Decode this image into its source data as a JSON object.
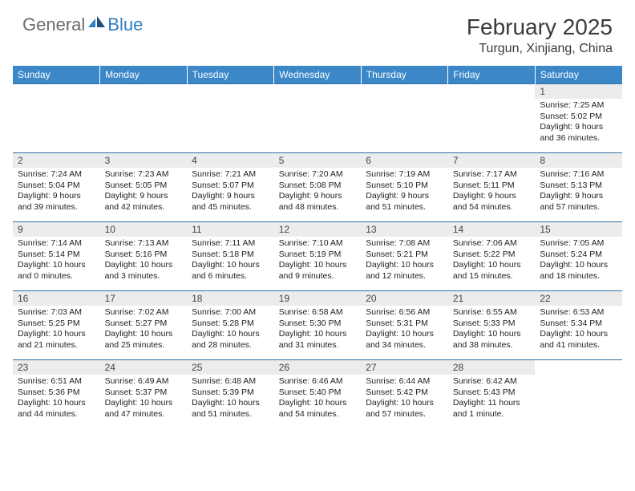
{
  "logo": {
    "text1": "General",
    "text2": "Blue"
  },
  "title": "February 2025",
  "location": "Turgun, Xinjiang, China",
  "colors": {
    "header_bg": "#3b87c8",
    "header_text": "#ffffff",
    "daynum_bg": "#ececec",
    "row_border": "#2f6fa8",
    "logo_gray": "#6b6b6b",
    "logo_blue": "#2f7ec0"
  },
  "weekdays": [
    "Sunday",
    "Monday",
    "Tuesday",
    "Wednesday",
    "Thursday",
    "Friday",
    "Saturday"
  ],
  "cells": [
    null,
    null,
    null,
    null,
    null,
    null,
    {
      "n": "1",
      "s": "Sunrise: 7:25 AM",
      "t": "Sunset: 5:02 PM",
      "d": "Daylight: 9 hours and 36 minutes."
    },
    {
      "n": "2",
      "s": "Sunrise: 7:24 AM",
      "t": "Sunset: 5:04 PM",
      "d": "Daylight: 9 hours and 39 minutes."
    },
    {
      "n": "3",
      "s": "Sunrise: 7:23 AM",
      "t": "Sunset: 5:05 PM",
      "d": "Daylight: 9 hours and 42 minutes."
    },
    {
      "n": "4",
      "s": "Sunrise: 7:21 AM",
      "t": "Sunset: 5:07 PM",
      "d": "Daylight: 9 hours and 45 minutes."
    },
    {
      "n": "5",
      "s": "Sunrise: 7:20 AM",
      "t": "Sunset: 5:08 PM",
      "d": "Daylight: 9 hours and 48 minutes."
    },
    {
      "n": "6",
      "s": "Sunrise: 7:19 AM",
      "t": "Sunset: 5:10 PM",
      "d": "Daylight: 9 hours and 51 minutes."
    },
    {
      "n": "7",
      "s": "Sunrise: 7:17 AM",
      "t": "Sunset: 5:11 PM",
      "d": "Daylight: 9 hours and 54 minutes."
    },
    {
      "n": "8",
      "s": "Sunrise: 7:16 AM",
      "t": "Sunset: 5:13 PM",
      "d": "Daylight: 9 hours and 57 minutes."
    },
    {
      "n": "9",
      "s": "Sunrise: 7:14 AM",
      "t": "Sunset: 5:14 PM",
      "d": "Daylight: 10 hours and 0 minutes."
    },
    {
      "n": "10",
      "s": "Sunrise: 7:13 AM",
      "t": "Sunset: 5:16 PM",
      "d": "Daylight: 10 hours and 3 minutes."
    },
    {
      "n": "11",
      "s": "Sunrise: 7:11 AM",
      "t": "Sunset: 5:18 PM",
      "d": "Daylight: 10 hours and 6 minutes."
    },
    {
      "n": "12",
      "s": "Sunrise: 7:10 AM",
      "t": "Sunset: 5:19 PM",
      "d": "Daylight: 10 hours and 9 minutes."
    },
    {
      "n": "13",
      "s": "Sunrise: 7:08 AM",
      "t": "Sunset: 5:21 PM",
      "d": "Daylight: 10 hours and 12 minutes."
    },
    {
      "n": "14",
      "s": "Sunrise: 7:06 AM",
      "t": "Sunset: 5:22 PM",
      "d": "Daylight: 10 hours and 15 minutes."
    },
    {
      "n": "15",
      "s": "Sunrise: 7:05 AM",
      "t": "Sunset: 5:24 PM",
      "d": "Daylight: 10 hours and 18 minutes."
    },
    {
      "n": "16",
      "s": "Sunrise: 7:03 AM",
      "t": "Sunset: 5:25 PM",
      "d": "Daylight: 10 hours and 21 minutes."
    },
    {
      "n": "17",
      "s": "Sunrise: 7:02 AM",
      "t": "Sunset: 5:27 PM",
      "d": "Daylight: 10 hours and 25 minutes."
    },
    {
      "n": "18",
      "s": "Sunrise: 7:00 AM",
      "t": "Sunset: 5:28 PM",
      "d": "Daylight: 10 hours and 28 minutes."
    },
    {
      "n": "19",
      "s": "Sunrise: 6:58 AM",
      "t": "Sunset: 5:30 PM",
      "d": "Daylight: 10 hours and 31 minutes."
    },
    {
      "n": "20",
      "s": "Sunrise: 6:56 AM",
      "t": "Sunset: 5:31 PM",
      "d": "Daylight: 10 hours and 34 minutes."
    },
    {
      "n": "21",
      "s": "Sunrise: 6:55 AM",
      "t": "Sunset: 5:33 PM",
      "d": "Daylight: 10 hours and 38 minutes."
    },
    {
      "n": "22",
      "s": "Sunrise: 6:53 AM",
      "t": "Sunset: 5:34 PM",
      "d": "Daylight: 10 hours and 41 minutes."
    },
    {
      "n": "23",
      "s": "Sunrise: 6:51 AM",
      "t": "Sunset: 5:36 PM",
      "d": "Daylight: 10 hours and 44 minutes."
    },
    {
      "n": "24",
      "s": "Sunrise: 6:49 AM",
      "t": "Sunset: 5:37 PM",
      "d": "Daylight: 10 hours and 47 minutes."
    },
    {
      "n": "25",
      "s": "Sunrise: 6:48 AM",
      "t": "Sunset: 5:39 PM",
      "d": "Daylight: 10 hours and 51 minutes."
    },
    {
      "n": "26",
      "s": "Sunrise: 6:46 AM",
      "t": "Sunset: 5:40 PM",
      "d": "Daylight: 10 hours and 54 minutes."
    },
    {
      "n": "27",
      "s": "Sunrise: 6:44 AM",
      "t": "Sunset: 5:42 PM",
      "d": "Daylight: 10 hours and 57 minutes."
    },
    {
      "n": "28",
      "s": "Sunrise: 6:42 AM",
      "t": "Sunset: 5:43 PM",
      "d": "Daylight: 11 hours and 1 minute."
    },
    null
  ]
}
